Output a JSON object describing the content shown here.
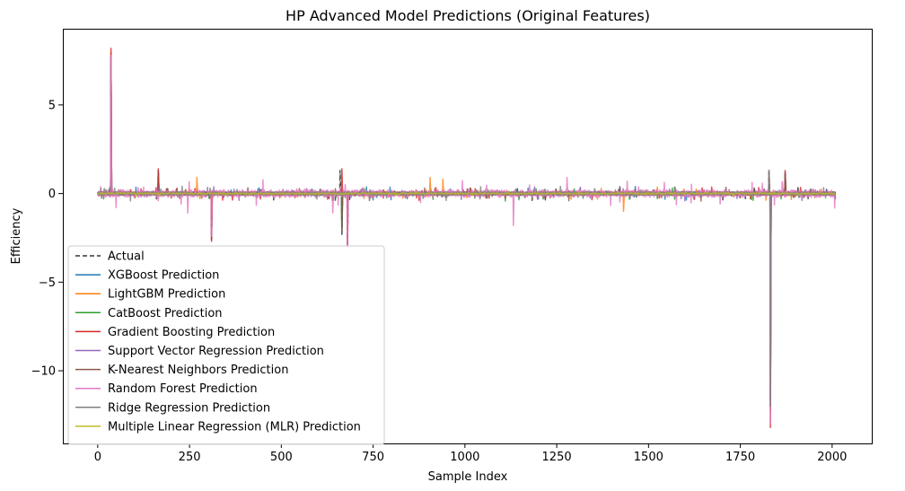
{
  "chart_data": {
    "type": "line",
    "title": "HP Advanced Model Predictions (Original Features)",
    "xlabel": "Sample Index",
    "ylabel": "Efficiency",
    "xlim": [
      -95,
      2108
    ],
    "ylim": [
      -14.1,
      9.3
    ],
    "xticks": [
      0,
      250,
      500,
      750,
      1000,
      1250,
      1500,
      1750,
      2000
    ],
    "yticks": [
      -10,
      -5,
      0,
      5
    ],
    "ytick_labels": [
      "−10",
      "−5",
      "0",
      "5"
    ],
    "grid": false,
    "legend_position": "lower-left",
    "n_samples": 2010,
    "series": [
      {
        "name": "Actual",
        "color": "#333333",
        "dashed": true,
        "spikes": [
          [
            36,
            7.8
          ],
          [
            165,
            1.2
          ],
          [
            310,
            -2.6
          ],
          [
            660,
            1.3
          ],
          [
            665,
            -2.4
          ],
          [
            680,
            -3.0
          ],
          [
            1832,
            -12.0
          ],
          [
            1828,
            1.2
          ],
          [
            1872,
            1.2
          ]
        ]
      },
      {
        "name": "XGBoost Prediction",
        "color": "#1f77b4",
        "spikes": [
          [
            36,
            7.9
          ],
          [
            165,
            1.3
          ],
          [
            310,
            -2.5
          ],
          [
            665,
            -2.3
          ],
          [
            1832,
            -11.5
          ],
          [
            1872,
            1.1
          ]
        ]
      },
      {
        "name": "LightGBM Prediction",
        "color": "#ff7f0e",
        "spikes": [
          [
            36,
            8.0
          ],
          [
            270,
            0.9
          ],
          [
            310,
            -0.7
          ],
          [
            905,
            0.9
          ],
          [
            940,
            0.8
          ],
          [
            1432,
            -1.0
          ],
          [
            1832,
            -11.0
          ]
        ]
      },
      {
        "name": "CatBoost Prediction",
        "color": "#2ca02c",
        "spikes": [
          [
            36,
            7.5
          ],
          [
            165,
            1.0
          ],
          [
            665,
            -2.0
          ],
          [
            1832,
            -10.5
          ]
        ]
      },
      {
        "name": "Gradient Boosting Prediction",
        "color": "#d62728",
        "spikes": [
          [
            36,
            8.2
          ],
          [
            165,
            1.4
          ],
          [
            310,
            -2.7
          ],
          [
            665,
            1.4
          ],
          [
            680,
            -2.9
          ],
          [
            1832,
            -13.2
          ],
          [
            1872,
            1.3
          ]
        ]
      },
      {
        "name": "Support Vector Regression Prediction",
        "color": "#9467bd",
        "spikes": [
          [
            36,
            7.6
          ],
          [
            1832,
            -11.8
          ]
        ]
      },
      {
        "name": "K-Nearest Neighbors Prediction",
        "color": "#8c564b",
        "spikes": [
          [
            36,
            7.7
          ],
          [
            665,
            -2.2
          ],
          [
            1828,
            1.3
          ],
          [
            1832,
            -12.2
          ],
          [
            1872,
            1.2
          ]
        ]
      },
      {
        "name": "Random Forest Prediction",
        "color": "#e377c2",
        "spikes": [
          [
            36,
            7.8
          ],
          [
            165,
            -0.4
          ],
          [
            245,
            -1.1
          ],
          [
            310,
            -2.4
          ],
          [
            640,
            -1.1
          ],
          [
            680,
            -3.1
          ],
          [
            1132,
            -1.8
          ],
          [
            1278,
            0.9
          ],
          [
            1832,
            -13.0
          ],
          [
            1865,
            0.6
          ]
        ]
      },
      {
        "name": "Ridge Regression Prediction",
        "color": "#7f7f7f",
        "spikes": [
          [
            1828,
            1.3
          ],
          [
            1832,
            -12.0
          ]
        ]
      },
      {
        "name": "Multiple Linear Regression (MLR) Prediction",
        "color": "#bcbd22",
        "spikes": []
      }
    ]
  }
}
